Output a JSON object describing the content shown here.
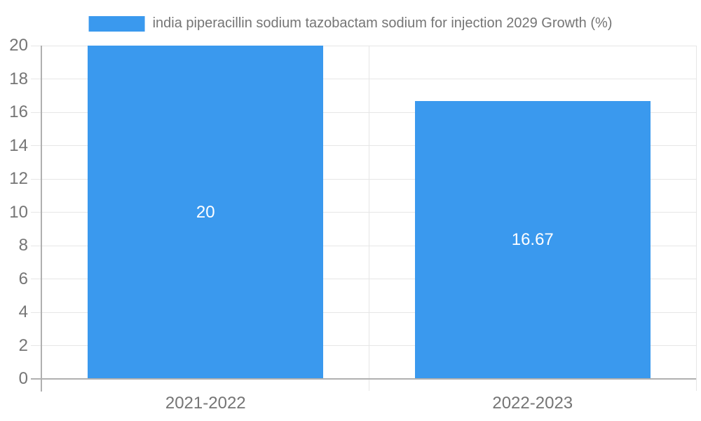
{
  "chart_data": {
    "type": "bar",
    "title": "india piperacillin sodium tazobactam sodium for injection 2029 Growth (%)",
    "categories": [
      "2021-2022",
      "2022-2023"
    ],
    "values": [
      20,
      16.67
    ],
    "value_labels": [
      "20",
      "16.67"
    ],
    "y_ticks": [
      0,
      2,
      4,
      6,
      8,
      10,
      12,
      14,
      16,
      18,
      20
    ],
    "ylim": [
      0,
      20
    ],
    "xlabel": "",
    "ylabel": "",
    "grid": true,
    "legend_position": "top-center",
    "colors": {
      "bar": "#3a99ee",
      "bar_value_text": "#ffffff",
      "axis_text": "#757575",
      "legend_text": "#757575",
      "gridline": "#e6e6e6",
      "axis_line": "#b0b0b0",
      "background": "#ffffff"
    }
  }
}
